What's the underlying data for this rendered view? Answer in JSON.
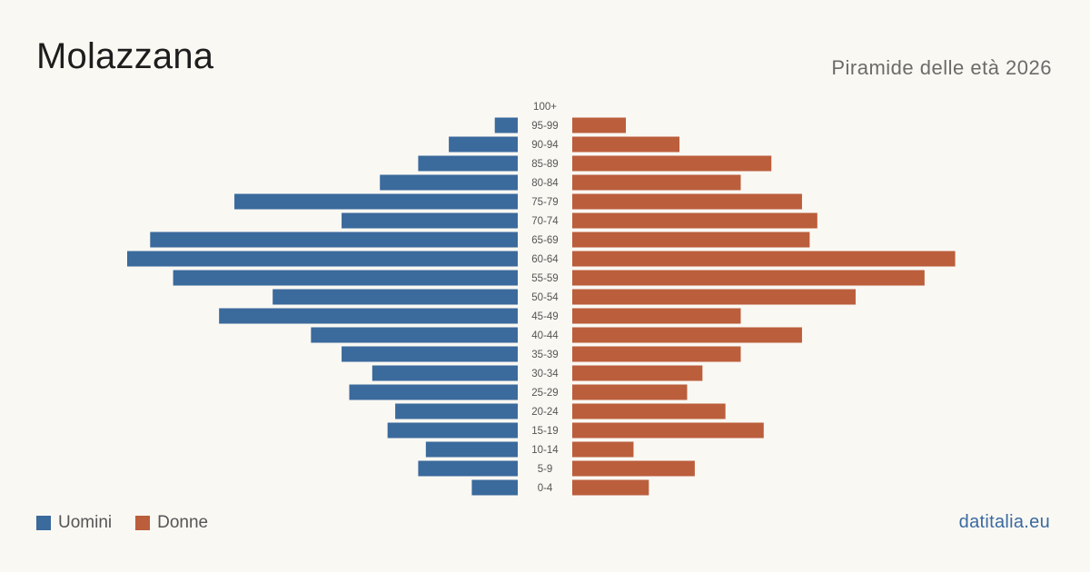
{
  "header": {
    "title": "Molazzana",
    "subtitle": "Piramide delle età 2026"
  },
  "legend": {
    "men_label": "Uomini",
    "women_label": "Donne"
  },
  "brand": "datitalia.eu",
  "colors": {
    "men": "#3b6a9c",
    "women": "#bb5e3c",
    "background": "#faf8f3"
  },
  "chart_data": {
    "type": "bar",
    "orientation": "horizontal-pyramid",
    "categories": [
      "100+",
      "95-99",
      "90-94",
      "85-89",
      "80-84",
      "75-79",
      "70-74",
      "65-69",
      "60-64",
      "55-59",
      "50-54",
      "45-49",
      "40-44",
      "35-39",
      "30-34",
      "25-29",
      "20-24",
      "15-19",
      "10-14",
      "5-9",
      "0-4"
    ],
    "series": [
      {
        "name": "Uomini",
        "values": [
          0,
          3,
          9,
          13,
          18,
          37,
          23,
          48,
          51,
          45,
          32,
          39,
          27,
          23,
          19,
          22,
          16,
          17,
          12,
          13,
          6
        ]
      },
      {
        "name": "Donne",
        "values": [
          0,
          7,
          14,
          26,
          22,
          30,
          32,
          31,
          50,
          46,
          37,
          22,
          30,
          22,
          17,
          15,
          20,
          25,
          8,
          16,
          10
        ]
      }
    ],
    "xlim": [
      0,
      51
    ],
    "legend_position": "bottom-left",
    "grid": false
  }
}
